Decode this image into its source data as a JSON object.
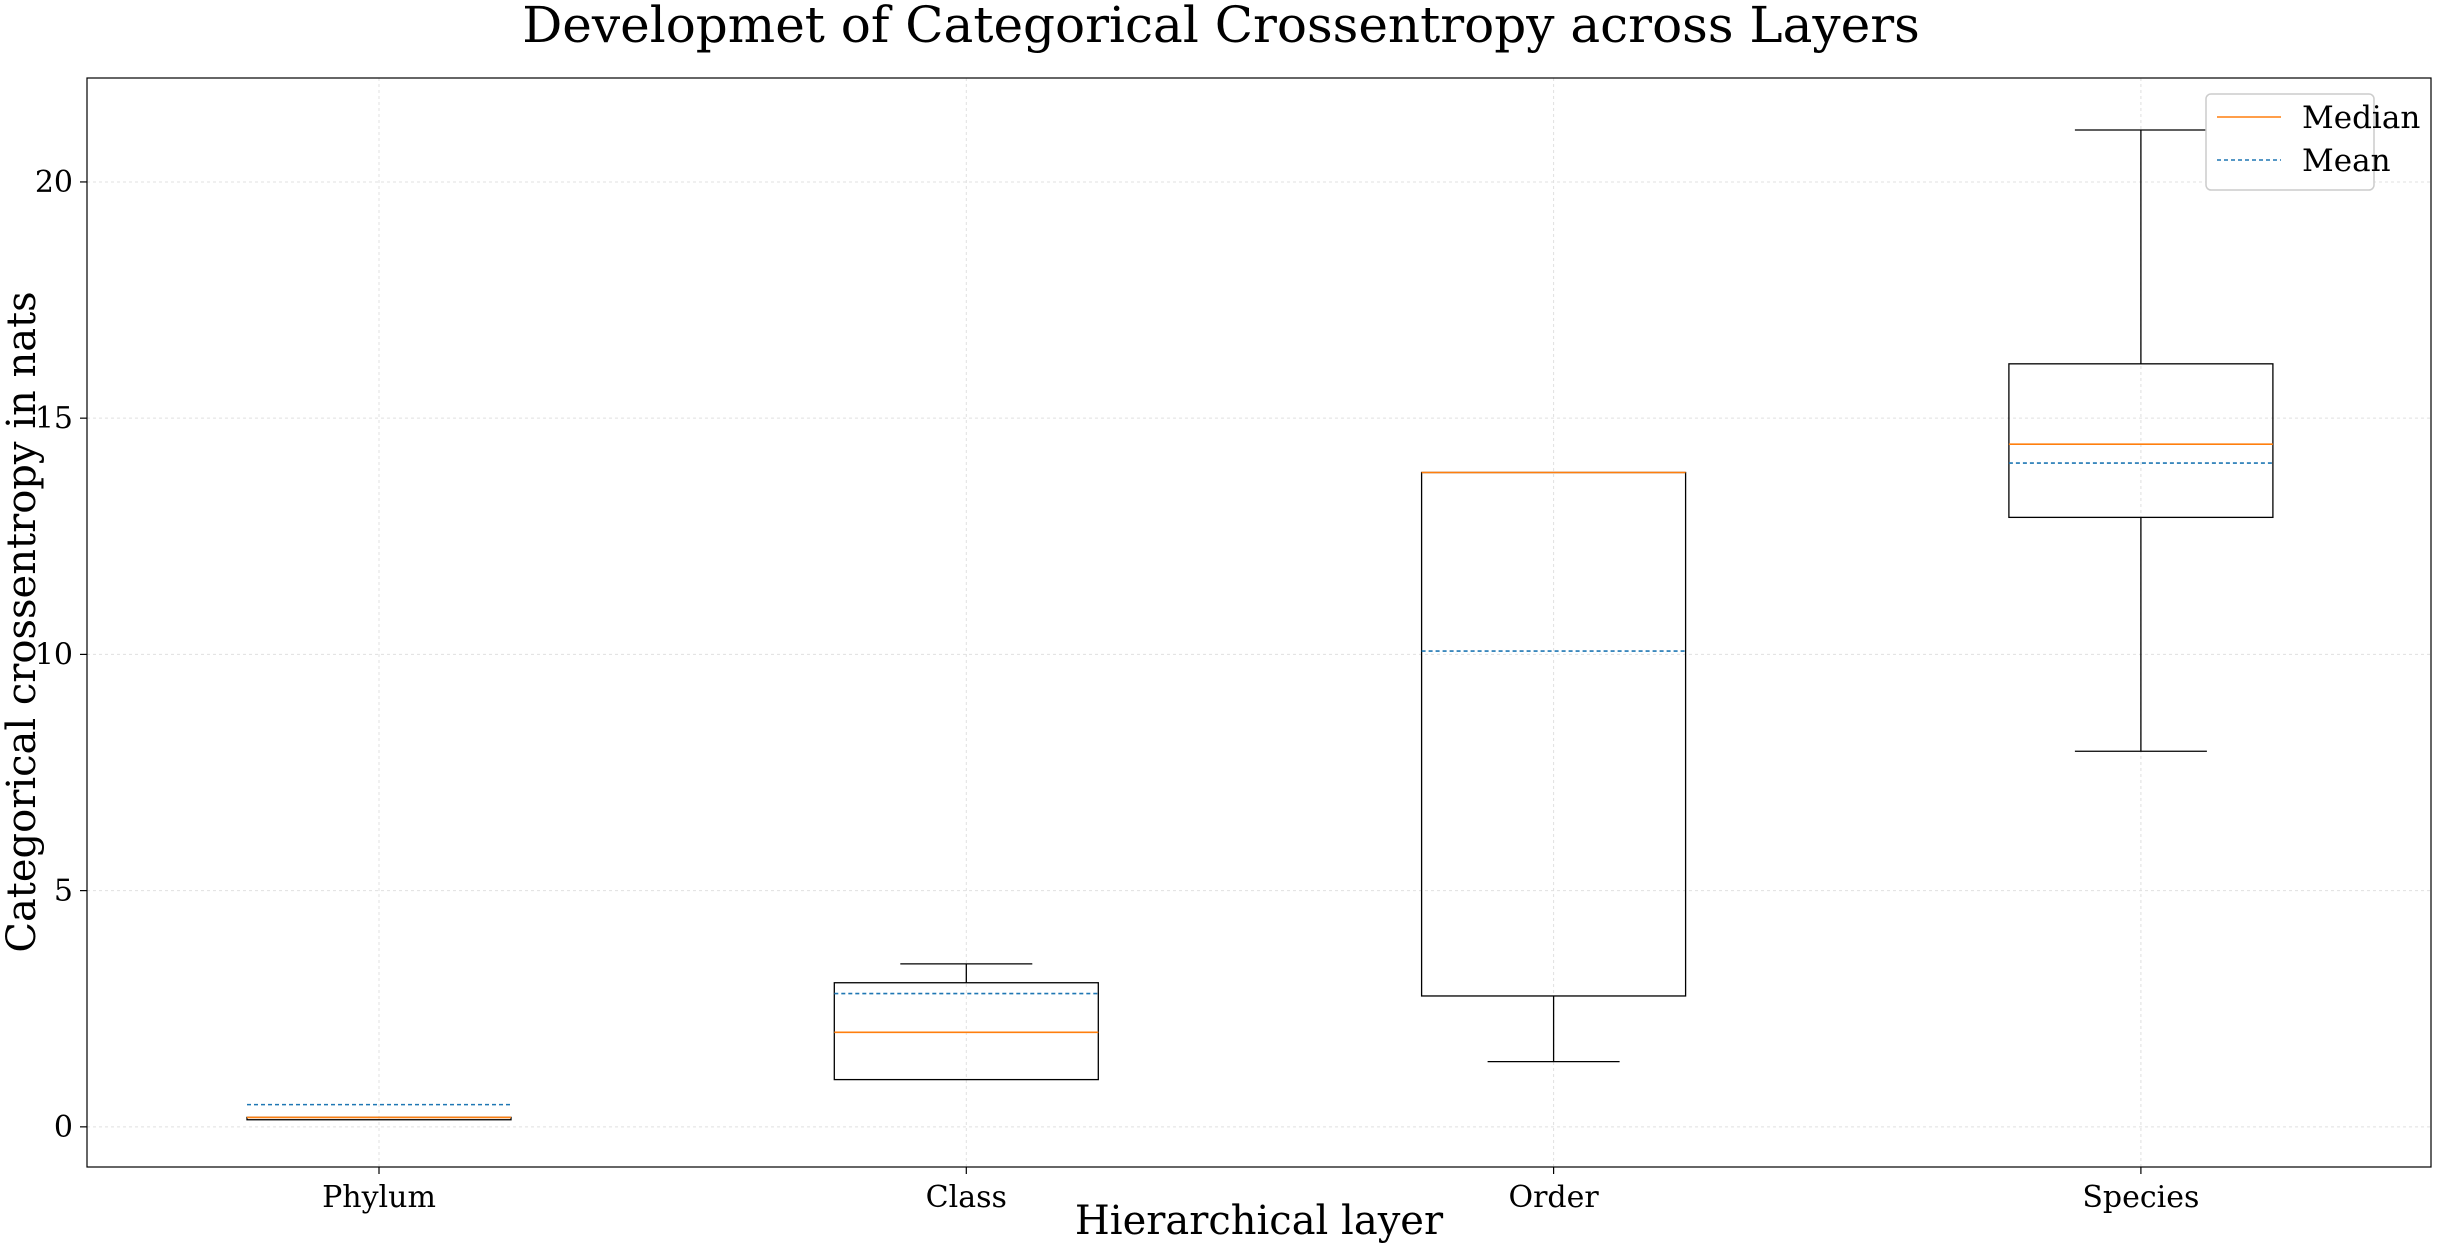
{
  "chart_data": {
    "type": "box",
    "title": "Developmet of Categorical Crossentropy across Layers",
    "xlabel": "Hierarchical layer",
    "ylabel": "Categorical crossentropy in nats",
    "ylim": [
      -0.85,
      22.2
    ],
    "yticks": [
      0,
      5,
      10,
      15,
      20
    ],
    "grid": true,
    "legend": {
      "position": "top-right",
      "entries": [
        {
          "label": "Median",
          "color": "#ff7f0e",
          "style": "solid"
        },
        {
          "label": "Mean",
          "color": "#1f77b4",
          "style": "dashed"
        }
      ]
    },
    "categories": [
      "Phylum",
      "Class",
      "Order",
      "Species"
    ],
    "boxes": [
      {
        "category": "Phylum",
        "whisker_low": 0.15,
        "q1": 0.15,
        "median": 0.2,
        "q3": 0.2,
        "whisker_high": 0.2,
        "mean": 0.47
      },
      {
        "category": "Class",
        "whisker_low": 1.0,
        "q1": 1.0,
        "median": 2.0,
        "q3": 3.05,
        "whisker_high": 3.45,
        "mean": 2.82
      },
      {
        "category": "Order",
        "whisker_low": 1.38,
        "q1": 2.77,
        "median": 13.85,
        "q3": 13.85,
        "whisker_high": 13.85,
        "mean": 10.07
      },
      {
        "category": "Species",
        "whisker_low": 7.95,
        "q1": 12.9,
        "median": 14.45,
        "q3": 16.15,
        "whisker_high": 21.1,
        "mean": 14.05
      }
    ],
    "colors": {
      "median": "#ff7f0e",
      "mean": "#1f77b4",
      "box": "#000000",
      "grid": "#e0e0e0"
    }
  }
}
